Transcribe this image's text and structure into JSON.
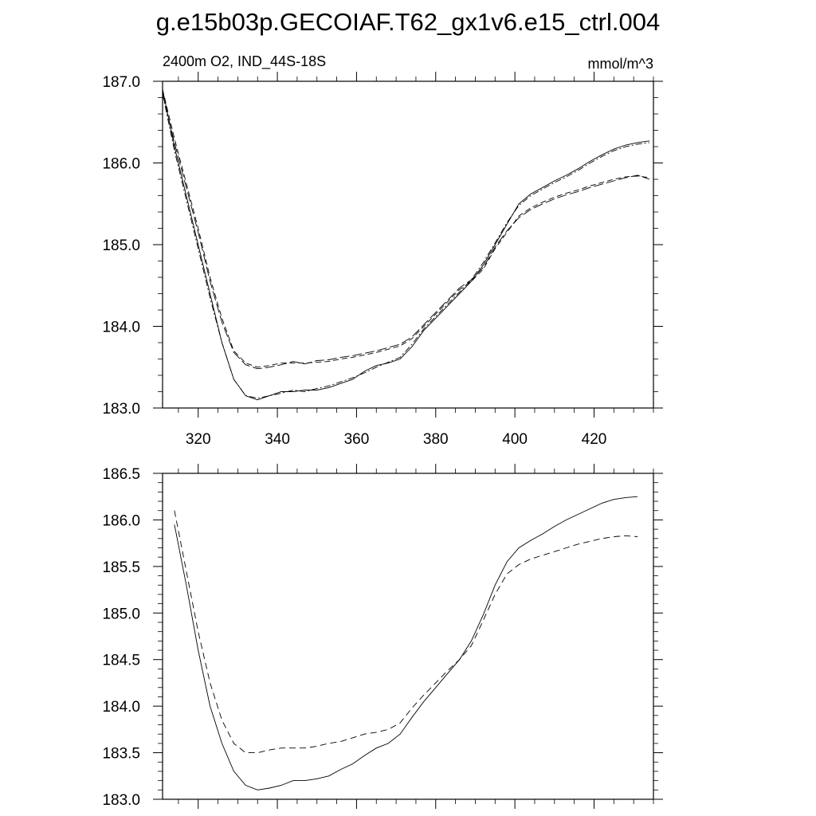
{
  "title": "g.e15b03p.GECOIAF.T62_gx1v6.e15_ctrl.004",
  "chart_data": [
    {
      "type": "line",
      "left_label": "2400m O2, IND_44S-18S",
      "right_label": "mmol/m^3",
      "xlim": [
        311,
        435
      ],
      "ylim": [
        183.0,
        187.0
      ],
      "xticks": [
        320,
        340,
        360,
        380,
        400,
        420
      ],
      "xtick_labels": [
        "320",
        "340",
        "360",
        "380",
        "400",
        "420"
      ],
      "yticks": [
        183.0,
        184.0,
        185.0,
        186.0,
        187.0
      ],
      "ytick_labels": [
        "183.0",
        "184.0",
        "185.0",
        "186.0",
        "187.0"
      ],
      "series": [
        {
          "name": "solid",
          "dash": "",
          "x": [
            311,
            314,
            317,
            320,
            323,
            326,
            329,
            332,
            335,
            338,
            341,
            344,
            347,
            350,
            353,
            356,
            359,
            362,
            365,
            368,
            371,
            374,
            377,
            380,
            383,
            386,
            389,
            392,
            395,
            398,
            401,
            404,
            407,
            410,
            413,
            416,
            419,
            422,
            425,
            428,
            431,
            434
          ],
          "y": [
            186.9,
            186.2,
            185.6,
            185.0,
            184.4,
            183.8,
            183.35,
            183.15,
            183.1,
            183.15,
            183.2,
            183.2,
            183.22,
            183.22,
            183.25,
            183.3,
            183.35,
            183.45,
            183.52,
            183.55,
            183.6,
            183.75,
            183.95,
            184.1,
            184.25,
            184.4,
            184.55,
            184.75,
            185.0,
            185.25,
            185.5,
            185.62,
            185.7,
            185.78,
            185.85,
            185.93,
            186.02,
            186.1,
            186.17,
            186.22,
            186.25,
            186.27
          ]
        },
        {
          "name": "dot-dash",
          "dash": "8,3,2,3",
          "x": [
            311,
            314,
            317,
            320,
            323,
            326,
            329,
            332,
            335,
            338,
            341,
            344,
            347,
            350,
            353,
            356,
            359,
            362,
            365,
            368,
            371,
            374,
            377,
            380,
            383,
            386,
            389,
            392,
            395,
            398,
            401,
            404,
            407,
            410,
            413,
            416,
            419,
            422,
            425,
            428,
            431,
            434
          ],
          "y": [
            186.85,
            186.15,
            185.55,
            184.95,
            184.35,
            183.8,
            183.35,
            183.15,
            183.12,
            183.15,
            183.18,
            183.22,
            183.2,
            183.24,
            183.27,
            183.32,
            183.37,
            183.43,
            183.5,
            183.56,
            183.62,
            183.78,
            183.97,
            184.12,
            184.27,
            184.42,
            184.57,
            184.78,
            185.02,
            185.27,
            185.48,
            185.6,
            185.68,
            185.76,
            185.83,
            185.91,
            186.0,
            186.08,
            186.15,
            186.2,
            186.23,
            186.25
          ]
        },
        {
          "name": "dashed",
          "dash": "7,4",
          "x": [
            311,
            314,
            317,
            320,
            323,
            326,
            329,
            332,
            335,
            338,
            341,
            344,
            347,
            350,
            353,
            356,
            359,
            362,
            365,
            368,
            371,
            374,
            377,
            380,
            383,
            386,
            389,
            392,
            395,
            398,
            401,
            404,
            407,
            410,
            413,
            416,
            419,
            422,
            425,
            428,
            431,
            434
          ],
          "y": [
            186.9,
            186.3,
            185.75,
            185.2,
            184.6,
            184.1,
            183.7,
            183.55,
            183.5,
            183.52,
            183.55,
            183.55,
            183.55,
            183.56,
            183.57,
            183.6,
            183.62,
            183.65,
            183.68,
            183.72,
            183.76,
            183.85,
            184.0,
            184.15,
            184.3,
            184.45,
            184.55,
            184.7,
            184.95,
            185.15,
            185.35,
            185.45,
            185.52,
            185.58,
            185.63,
            185.67,
            185.72,
            185.76,
            185.8,
            185.83,
            185.84,
            185.82
          ]
        },
        {
          "name": "long-dash",
          "dash": "12,4",
          "x": [
            311,
            314,
            317,
            320,
            323,
            326,
            329,
            332,
            335,
            338,
            341,
            344,
            347,
            350,
            353,
            356,
            359,
            362,
            365,
            368,
            371,
            374,
            377,
            380,
            383,
            386,
            389,
            392,
            395,
            398,
            401,
            404,
            407,
            410,
            413,
            416,
            419,
            422,
            425,
            428,
            431,
            434
          ],
          "y": [
            186.85,
            186.25,
            185.7,
            185.15,
            184.55,
            184.05,
            183.68,
            183.53,
            183.48,
            183.5,
            183.53,
            183.57,
            183.54,
            183.58,
            183.59,
            183.62,
            183.64,
            183.67,
            183.7,
            183.74,
            183.78,
            183.87,
            184.02,
            184.17,
            184.32,
            184.47,
            184.57,
            184.72,
            184.97,
            185.17,
            185.33,
            185.43,
            185.5,
            185.56,
            185.61,
            185.65,
            185.7,
            185.74,
            185.78,
            185.82,
            185.85,
            185.8
          ]
        }
      ]
    },
    {
      "type": "line",
      "xlim": [
        311,
        435
      ],
      "ylim": [
        183.0,
        186.5
      ],
      "yticks": [
        183.0,
        183.5,
        184.0,
        184.5,
        185.0,
        185.5,
        186.0,
        186.5
      ],
      "ytick_labels": [
        "183.0",
        "183.5",
        "184.0",
        "184.5",
        "185.0",
        "185.5",
        "186.0",
        "186.5"
      ],
      "xticks": [
        320,
        340,
        360,
        380,
        400,
        420
      ],
      "series": [
        {
          "name": "solid",
          "dash": "",
          "x": [
            314,
            317,
            320,
            323,
            326,
            329,
            332,
            335,
            338,
            341,
            344,
            347,
            350,
            353,
            356,
            359,
            362,
            365,
            368,
            371,
            374,
            377,
            380,
            383,
            386,
            389,
            392,
            395,
            398,
            401,
            404,
            407,
            410,
            413,
            416,
            419,
            422,
            425,
            428,
            431
          ],
          "y": [
            185.95,
            185.3,
            184.6,
            184.0,
            183.6,
            183.3,
            183.15,
            183.1,
            183.12,
            183.15,
            183.2,
            183.2,
            183.22,
            183.25,
            183.32,
            183.38,
            183.47,
            183.55,
            183.6,
            183.7,
            183.88,
            184.05,
            184.2,
            184.35,
            184.5,
            184.7,
            184.98,
            185.3,
            185.55,
            185.7,
            185.78,
            185.85,
            185.93,
            186.0,
            186.06,
            186.12,
            186.18,
            186.22,
            186.24,
            186.25
          ]
        },
        {
          "name": "dashed",
          "dash": "8,5",
          "x": [
            314,
            317,
            320,
            323,
            326,
            329,
            332,
            335,
            338,
            341,
            344,
            347,
            350,
            353,
            356,
            359,
            362,
            365,
            368,
            371,
            374,
            377,
            380,
            383,
            386,
            389,
            392,
            395,
            398,
            401,
            404,
            407,
            410,
            413,
            416,
            419,
            422,
            425,
            428,
            431
          ],
          "y": [
            186.1,
            185.45,
            184.8,
            184.25,
            183.85,
            183.6,
            183.5,
            183.5,
            183.53,
            183.55,
            183.55,
            183.55,
            183.57,
            183.6,
            183.62,
            183.66,
            183.7,
            183.72,
            183.75,
            183.82,
            183.98,
            184.12,
            184.25,
            184.38,
            184.5,
            184.65,
            184.92,
            185.2,
            185.42,
            185.52,
            185.58,
            185.62,
            185.66,
            185.7,
            185.74,
            185.77,
            185.8,
            185.82,
            185.83,
            185.82
          ]
        }
      ]
    }
  ]
}
